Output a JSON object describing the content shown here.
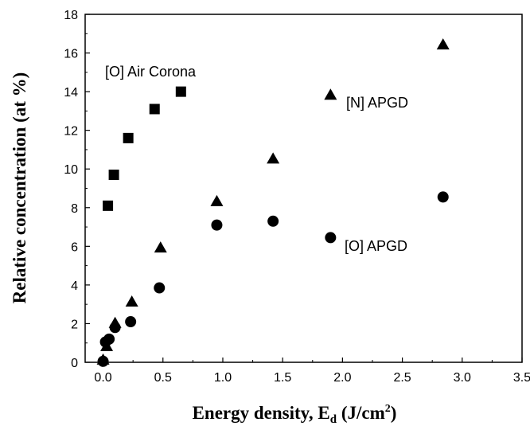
{
  "chart_data": {
    "type": "scatter",
    "xlabel": {
      "main": "Energy density, E",
      "sub": "d",
      "unit_pre": " (J/cm",
      "sup": "2",
      "unit_post": ")"
    },
    "ylabel": "Relative concentration (at %)",
    "xlim": [
      -0.15,
      3.5
    ],
    "ylim": [
      0,
      18
    ],
    "xticks": [
      0.0,
      0.5,
      1.0,
      1.5,
      2.0,
      2.5,
      3.0,
      3.5
    ],
    "xtick_labels": [
      "0.0",
      "0.5",
      "1.0",
      "1.5",
      "2.0",
      "2.5",
      "3.0",
      "3.5"
    ],
    "yticks": [
      0,
      2,
      4,
      6,
      8,
      10,
      12,
      14,
      16,
      18
    ],
    "ytick_labels": [
      "0",
      "2",
      "4",
      "6",
      "8",
      "10",
      "12",
      "14",
      "16",
      "18"
    ],
    "grid": false,
    "series": [
      {
        "name": "[O] Air Corona",
        "marker": "square",
        "color": "#000000",
        "points": [
          [
            0.04,
            8.1
          ],
          [
            0.09,
            9.7
          ],
          [
            0.21,
            11.6
          ],
          [
            0.43,
            13.1
          ],
          [
            0.65,
            14.0
          ]
        ]
      },
      {
        "name": "[N] APGD",
        "marker": "triangle",
        "color": "#000000",
        "points": [
          [
            0.0,
            0.1
          ],
          [
            0.03,
            0.8
          ],
          [
            0.1,
            2.0
          ],
          [
            0.24,
            3.1
          ],
          [
            0.48,
            5.9
          ],
          [
            0.95,
            8.3
          ],
          [
            1.42,
            10.5
          ],
          [
            1.9,
            13.8
          ],
          [
            2.84,
            16.4
          ]
        ]
      },
      {
        "name": "[O] APGD",
        "marker": "circle",
        "color": "#000000",
        "points": [
          [
            0.0,
            0.05
          ],
          [
            0.02,
            1.05
          ],
          [
            0.05,
            1.2
          ],
          [
            0.1,
            1.8
          ],
          [
            0.23,
            2.1
          ],
          [
            0.47,
            3.85
          ],
          [
            0.95,
            7.1
          ],
          [
            1.42,
            7.3
          ],
          [
            1.9,
            6.45
          ],
          [
            2.84,
            8.55
          ]
        ]
      }
    ],
    "annotations": [
      "[O] Air Corona",
      "[N] APGD",
      "[O] APGD"
    ]
  }
}
